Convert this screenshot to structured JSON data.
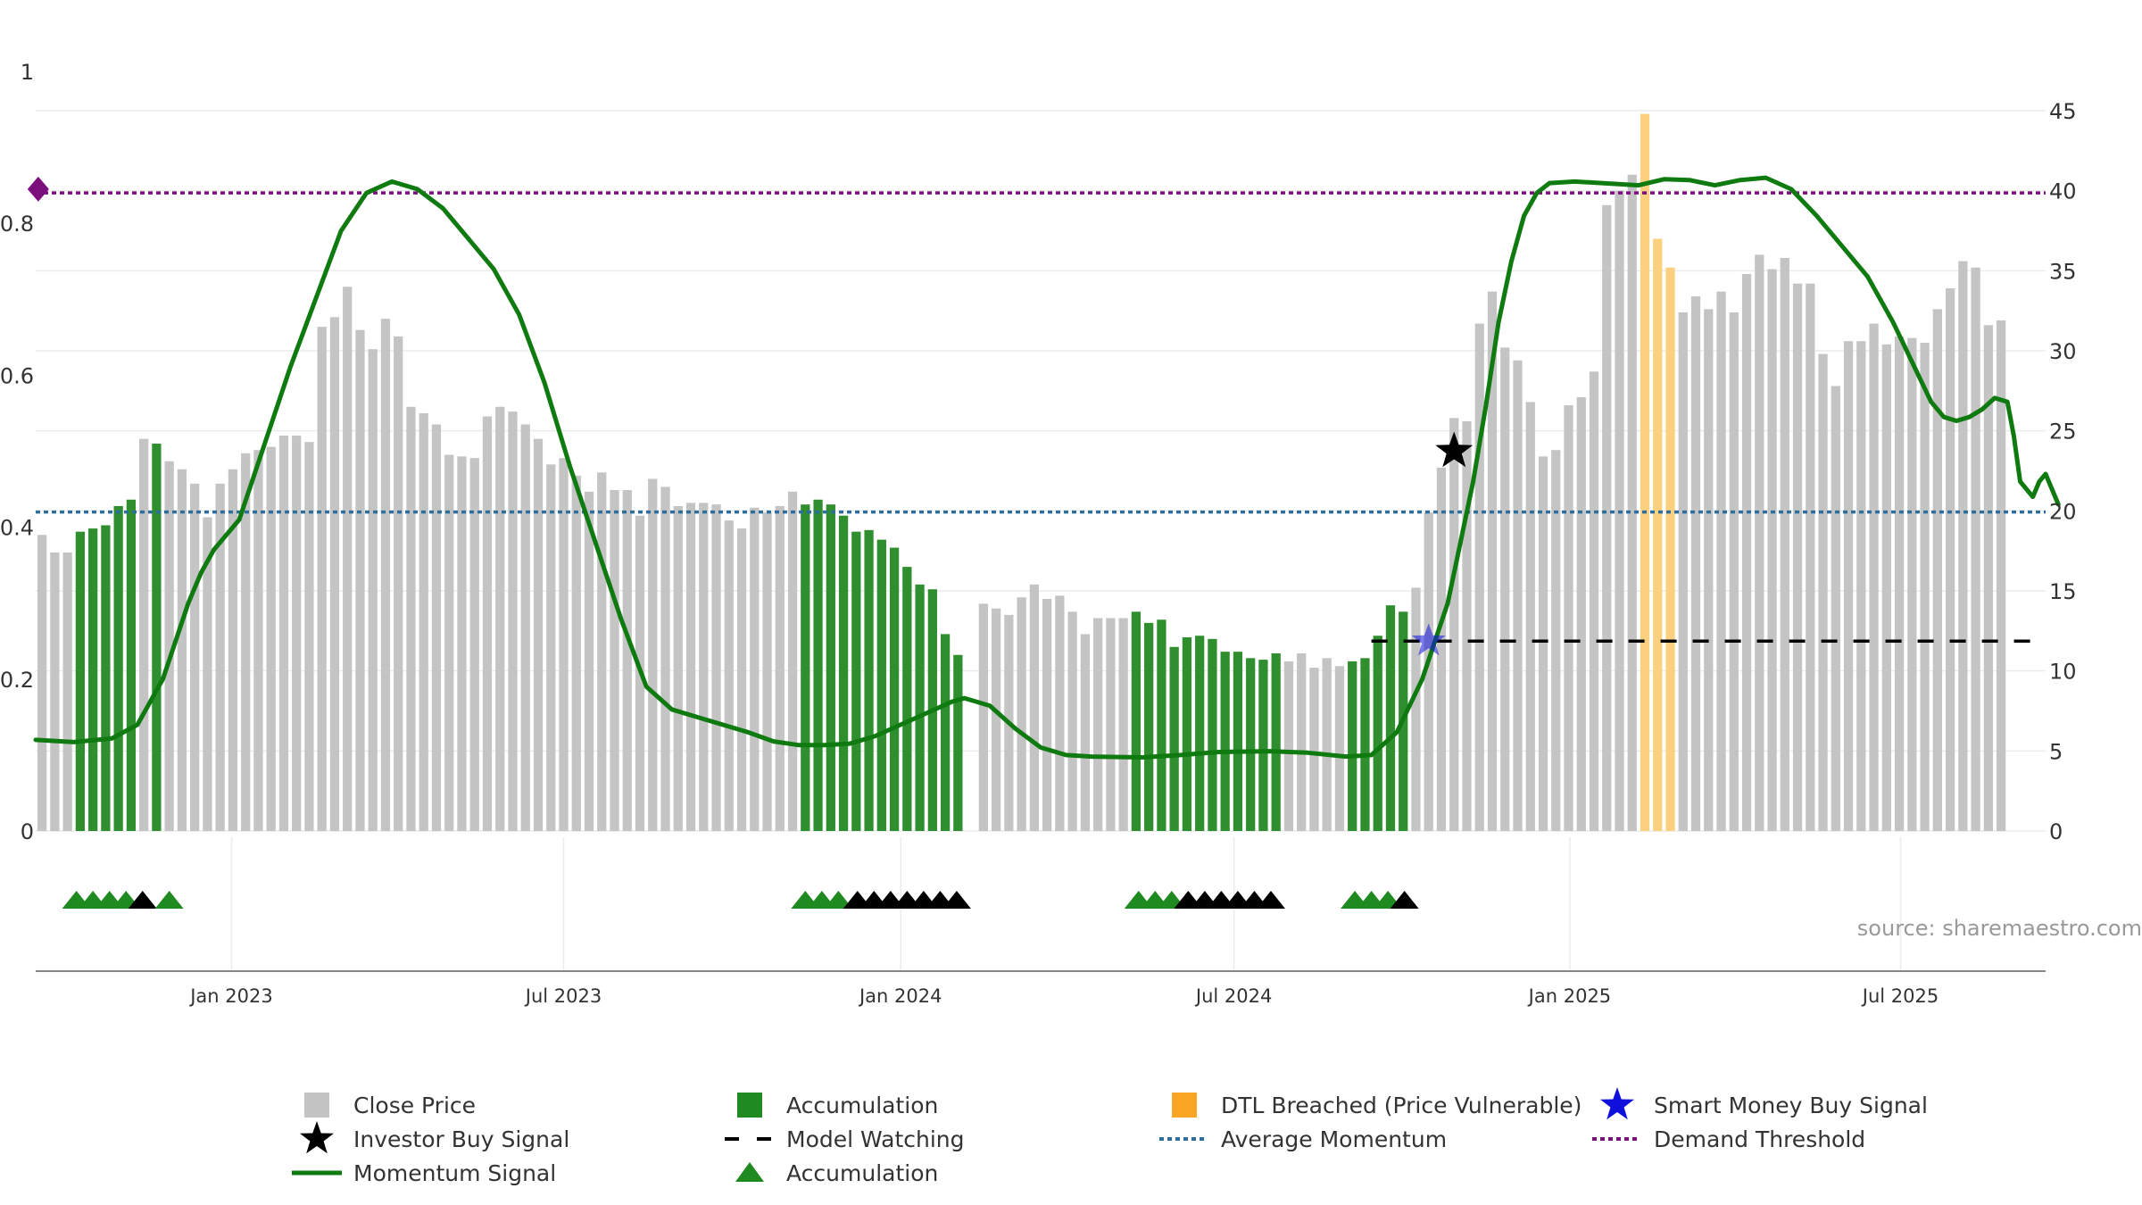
{
  "chart_data": {
    "type": "bar",
    "title": "",
    "source": "source: sharemaestro.com",
    "colors": {
      "close": "#c4c4c4",
      "accumulation": "#2f8f2f",
      "dtl": "#fbd07e",
      "momentum": "#0f7a0f",
      "momentum_fade": "#4a9a4a",
      "average": "#2c6f9e",
      "threshold": "#7b0f7b",
      "smart_money": "#1010dd",
      "grid": "#ececec",
      "axis_text": "#333333"
    },
    "left_axis": {
      "range": [
        0,
        1
      ],
      "ticks": [
        0,
        0.2,
        0.4,
        0.6,
        0.8,
        1
      ],
      "tick_labels": [
        "0",
        "0.2",
        "0.4",
        "0.6",
        "0.8",
        "1"
      ]
    },
    "right_axis": {
      "range": [
        0,
        45
      ],
      "ticks": [
        0,
        5,
        10,
        15,
        20,
        25,
        30,
        35,
        40,
        45
      ],
      "tick_labels": [
        "0",
        "5",
        "10",
        "15",
        "20",
        "25",
        "30",
        "35",
        "40",
        "45"
      ]
    },
    "x_axis": {
      "range": [
        0,
        158
      ],
      "ticks": [
        15.4,
        41.5,
        68.0,
        94.2,
        120.6,
        146.6
      ],
      "tick_labels": [
        "Jan 2023",
        "Jul 2023",
        "Jan 2024",
        "Jul 2024",
        "Jan 2025",
        "Jul 2025"
      ]
    },
    "close_prices": [
      18.5,
      17.4,
      17.4,
      18.7,
      18.9,
      19.1,
      20.3,
      20.7,
      24.5,
      24.2,
      23.1,
      22.6,
      21.7,
      19.6,
      21.7,
      22.6,
      23.6,
      23.8,
      24.0,
      24.7,
      24.7,
      24.3,
      31.5,
      32.1,
      34.0,
      31.3,
      30.1,
      32.0,
      30.9,
      26.5,
      26.1,
      25.4,
      23.5,
      23.4,
      23.3,
      25.9,
      26.5,
      26.2,
      25.4,
      24.5,
      22.9,
      23.3,
      22.2,
      21.2,
      22.4,
      21.3,
      21.3,
      19.7,
      22.0,
      21.5,
      20.3,
      20.5,
      20.5,
      20.4,
      19.4,
      18.9,
      20.2,
      19.9,
      20.3,
      21.2,
      20.4,
      20.7,
      20.4,
      19.7,
      18.7,
      18.8,
      18.2,
      17.7,
      16.5,
      15.4,
      15.1,
      12.3,
      11.0,
      0,
      14.2,
      13.9,
      13.5,
      14.6,
      15.4,
      14.5,
      14.7,
      13.7,
      12.3,
      13.3,
      13.3,
      13.3,
      13.7,
      13.0,
      13.2,
      11.5,
      12.1,
      12.2,
      12.0,
      11.2,
      11.2,
      10.8,
      10.7,
      11.1,
      10.6,
      11.1,
      10.2,
      10.8,
      10.3,
      10.6,
      10.8,
      12.2,
      14.1,
      13.7,
      15.2,
      19.9,
      22.7,
      25.8,
      25.6,
      31.7,
      33.7,
      30.2,
      29.4,
      26.8,
      23.4,
      23.8,
      26.6,
      27.1,
      28.7,
      39.1,
      40.0,
      41.0,
      44.8,
      37.0,
      35.2,
      32.4,
      33.4,
      32.6,
      33.7,
      32.4,
      34.8,
      36.0,
      35.1,
      35.8,
      34.2,
      34.2,
      29.8,
      27.8,
      30.6,
      30.6,
      31.7,
      30.4,
      30.9,
      30.8,
      30.5,
      32.6,
      33.9,
      35.6,
      35.2,
      31.6,
      31.9
    ],
    "accumulation_weeks": [
      3,
      4,
      5,
      6,
      7,
      9,
      60,
      61,
      62,
      63,
      64,
      65,
      66,
      67,
      68,
      69,
      70,
      71,
      72,
      86,
      87,
      88,
      89,
      90,
      91,
      92,
      93,
      94,
      95,
      96,
      97,
      103,
      104,
      105,
      106,
      107
    ],
    "dtl_breached_weeks": [
      126,
      127,
      128
    ],
    "momentum_signal": [
      [
        0,
        0.12
      ],
      [
        3,
        0.117
      ],
      [
        6,
        0.122
      ],
      [
        8,
        0.14
      ],
      [
        10,
        0.2
      ],
      [
        12,
        0.3
      ],
      [
        13,
        0.34
      ],
      [
        14,
        0.37
      ],
      [
        16,
        0.41
      ],
      [
        18,
        0.51
      ],
      [
        20,
        0.61
      ],
      [
        22,
        0.7
      ],
      [
        24,
        0.79
      ],
      [
        26,
        0.84
      ],
      [
        28,
        0.855
      ],
      [
        30,
        0.845
      ],
      [
        32,
        0.82
      ],
      [
        34,
        0.78
      ],
      [
        36,
        0.74
      ],
      [
        38,
        0.68
      ],
      [
        40,
        0.59
      ],
      [
        42,
        0.48
      ],
      [
        44,
        0.38
      ],
      [
        46,
        0.28
      ],
      [
        48,
        0.19
      ],
      [
        50,
        0.16
      ],
      [
        52,
        0.15
      ],
      [
        54,
        0.14
      ],
      [
        56,
        0.13
      ],
      [
        58,
        0.118
      ],
      [
        60,
        0.113
      ],
      [
        62,
        0.113
      ],
      [
        64,
        0.115
      ],
      [
        66,
        0.125
      ],
      [
        68,
        0.14
      ],
      [
        70,
        0.155
      ],
      [
        72,
        0.17
      ],
      [
        73,
        0.175
      ],
      [
        75,
        0.165
      ],
      [
        77,
        0.135
      ],
      [
        79,
        0.11
      ],
      [
        81,
        0.1
      ],
      [
        83,
        0.098
      ],
      [
        87,
        0.097
      ],
      [
        90,
        0.1
      ],
      [
        93,
        0.104
      ],
      [
        97,
        0.105
      ],
      [
        100,
        0.103
      ],
      [
        103,
        0.098
      ],
      [
        105,
        0.1
      ],
      [
        107,
        0.13
      ],
      [
        109,
        0.2
      ],
      [
        110,
        0.25
      ],
      [
        111,
        0.3
      ],
      [
        112,
        0.38
      ],
      [
        113,
        0.46
      ],
      [
        114,
        0.56
      ],
      [
        115,
        0.67
      ],
      [
        116,
        0.75
      ],
      [
        117,
        0.81
      ],
      [
        118,
        0.84
      ],
      [
        119,
        0.853
      ],
      [
        121,
        0.855
      ],
      [
        124,
        0.852
      ],
      [
        126,
        0.85
      ],
      [
        128,
        0.858
      ],
      [
        130,
        0.857
      ],
      [
        132,
        0.85
      ],
      [
        134,
        0.857
      ],
      [
        136,
        0.86
      ],
      [
        138,
        0.845
      ],
      [
        140,
        0.81
      ],
      [
        142,
        0.77
      ],
      [
        144,
        0.73
      ],
      [
        146,
        0.67
      ],
      [
        148,
        0.6
      ],
      [
        149,
        0.565
      ],
      [
        150,
        0.545
      ],
      [
        151,
        0.54
      ],
      [
        152,
        0.545
      ],
      [
        153,
        0.555
      ],
      [
        154,
        0.57
      ],
      [
        155,
        0.565
      ],
      [
        155.5,
        0.52
      ],
      [
        156,
        0.46
      ],
      [
        157,
        0.44
      ],
      [
        157.5,
        0.46
      ],
      [
        158,
        0.47
      ],
      [
        158.5,
        0.45
      ],
      [
        159,
        0.43
      ]
    ],
    "average_momentum": 0.42,
    "demand_threshold": 0.84,
    "model_watching": {
      "level": 0.25,
      "from_week": 105,
      "to_week": 158
    },
    "investor_buy_signal": {
      "week": 111.5,
      "value": 0.5
    },
    "smart_money_buy_signal": {
      "week": 109.5,
      "value": 0.25
    },
    "threshold_marker": {
      "week": 0.2,
      "value": 0.845
    },
    "accumulation_triangles": [
      {
        "week": 3.2,
        "color": "green"
      },
      {
        "week": 4.5,
        "color": "green"
      },
      {
        "week": 5.8,
        "color": "green"
      },
      {
        "week": 7.1,
        "color": "green"
      },
      {
        "week": 8.4,
        "color": "black"
      },
      {
        "week": 10.5,
        "color": "green"
      },
      {
        "week": 60.5,
        "color": "green"
      },
      {
        "week": 61.8,
        "color": "green"
      },
      {
        "week": 63.1,
        "color": "green"
      },
      {
        "week": 64.6,
        "color": "black"
      },
      {
        "week": 65.9,
        "color": "black"
      },
      {
        "week": 67.2,
        "color": "black"
      },
      {
        "week": 68.5,
        "color": "black"
      },
      {
        "week": 69.8,
        "color": "black"
      },
      {
        "week": 71.1,
        "color": "black"
      },
      {
        "week": 72.4,
        "color": "black"
      },
      {
        "week": 86.7,
        "color": "green"
      },
      {
        "week": 88.0,
        "color": "green"
      },
      {
        "week": 89.3,
        "color": "green"
      },
      {
        "week": 90.6,
        "color": "black"
      },
      {
        "week": 91.9,
        "color": "black"
      },
      {
        "week": 93.2,
        "color": "black"
      },
      {
        "week": 94.5,
        "color": "black"
      },
      {
        "week": 95.8,
        "color": "black"
      },
      {
        "week": 97.1,
        "color": "black"
      },
      {
        "week": 103.7,
        "color": "green"
      },
      {
        "week": 105.0,
        "color": "green"
      },
      {
        "week": 106.3,
        "color": "green"
      },
      {
        "week": 107.6,
        "color": "black"
      }
    ],
    "legend": [
      {
        "label": "Close Price",
        "symbol": "square",
        "color": "#c4c4c4"
      },
      {
        "label": "Accumulation",
        "symbol": "square",
        "color": "#1f8a1f"
      },
      {
        "label": "DTL Breached (Price Vulnerable)",
        "symbol": "square",
        "color": "#fba524"
      },
      {
        "label": "Smart Money Buy Signal",
        "symbol": "star",
        "color": "#1010dd"
      },
      {
        "label": "Investor Buy Signal",
        "symbol": "star",
        "color": "#000000"
      },
      {
        "label": "Model Watching",
        "symbol": "dash",
        "color": "#000000"
      },
      {
        "label": "Average Momentum",
        "symbol": "dot",
        "color": "#2c6f9e"
      },
      {
        "label": "Demand Threshold",
        "symbol": "dot",
        "color": "#7b0f7b"
      },
      {
        "label": "Momentum Signal",
        "symbol": "line",
        "color": "#0f7a0f"
      },
      {
        "label": "Accumulation",
        "symbol": "triangle",
        "color": "#1f8a1f"
      }
    ]
  }
}
